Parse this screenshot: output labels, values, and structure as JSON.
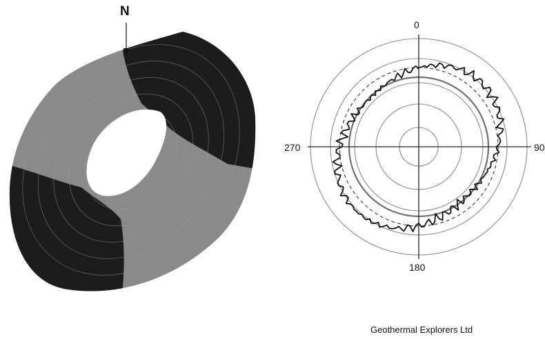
{
  "north_label": "N",
  "polar_plot": {
    "angle_labels": {
      "top": "0",
      "right": "90",
      "bottom": "180",
      "left": "270"
    }
  },
  "credit": "Geothermal Explorers Ltd",
  "colors": {
    "dark_band": "#1c1c1c",
    "light_band": "#8c8c8c",
    "trace": "#111111",
    "circle": "#8a8a8a"
  }
}
